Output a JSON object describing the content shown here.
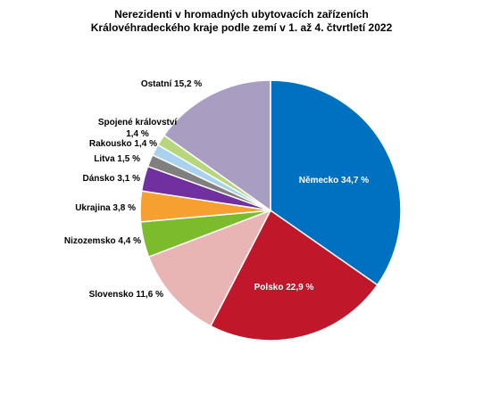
{
  "chart_data": {
    "type": "pie",
    "title": "Nerezidenti v hromadných ubytovacích  zařízeních Královéhradeckého kraje podle zemí v 1. až 4. čtvrtletí 2022",
    "title_lines": [
      "Nerezidenti v hromadných ubytovacích  zařízeních",
      "Královéhradeckého kraje podle zemí v 1. až 4. čtvrtletí 2022"
    ],
    "unit": "%",
    "slices": [
      {
        "label": "Německo",
        "value": 34.7,
        "text": "Německo 34,7 %",
        "color": "#0070c0"
      },
      {
        "label": "Polsko",
        "value": 22.9,
        "text": "Polsko 22,9 %",
        "color": "#c0182a"
      },
      {
        "label": "Slovensko",
        "value": 11.6,
        "text": "Slovensko  11,6 %",
        "color": "#e8b4b4"
      },
      {
        "label": "Nizozemsko",
        "value": 4.4,
        "text": "Nizozemsko 4,4 %",
        "color": "#7cbc2c"
      },
      {
        "label": "Ukrajina",
        "value": 3.8,
        "text": "Ukrajina 3,8 %",
        "color": "#f5a030"
      },
      {
        "label": "Dánsko",
        "value": 3.1,
        "text": "Dánsko 3,1 %",
        "color": "#7030a0"
      },
      {
        "label": "Litva",
        "value": 1.5,
        "text": "Litva 1,5 %",
        "color": "#7f7f7f"
      },
      {
        "label": "Rakousko",
        "value": 1.4,
        "text": "Rakousko 1,4 %",
        "color": "#a9d2ee"
      },
      {
        "label": "Spojené království",
        "value": 1.4,
        "text": "Spojené království\n1,4 %",
        "color": "#b6d77c"
      },
      {
        "label": "Ostatní",
        "value": 15.2,
        "text": "Ostatní 15,2 %",
        "color": "#a99ec2"
      }
    ]
  }
}
